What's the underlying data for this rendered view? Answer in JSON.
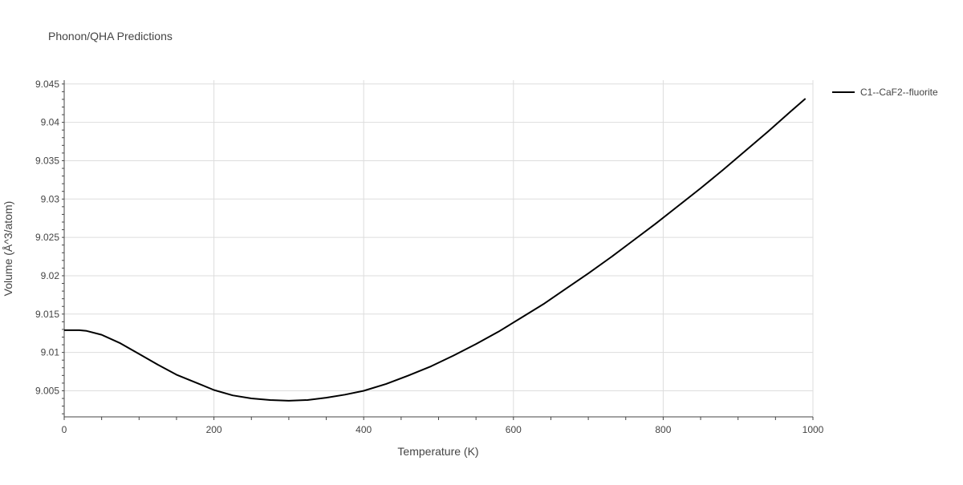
{
  "chart_data": {
    "type": "line",
    "title": "Phonon/QHA Predictions",
    "xlabel": "Temperature (K)",
    "ylabel": "Volume (Å^3/atom)",
    "xlim": [
      0,
      1000
    ],
    "ylim": [
      9.0016,
      9.0455
    ],
    "x_ticks": [
      0,
      200,
      400,
      600,
      800,
      1000
    ],
    "x_tick_labels": [
      "0",
      "200",
      "400",
      "600",
      "800",
      "1000"
    ],
    "y_ticks": [
      9.005,
      9.01,
      9.015,
      9.02,
      9.025,
      9.03,
      9.035,
      9.04,
      9.045
    ],
    "y_tick_labels": [
      "9.005",
      "9.01",
      "9.015",
      "9.02",
      "9.025",
      "9.03",
      "9.035",
      "9.04",
      "9.045"
    ],
    "grid": true,
    "legend_position": "top-right",
    "series": [
      {
        "name": "C1--CaF2--fluorite",
        "color": "#000000",
        "x": [
          0,
          20,
          30,
          50,
          75,
          100,
          125,
          150,
          175,
          200,
          225,
          250,
          275,
          300,
          325,
          350,
          375,
          400,
          430,
          460,
          490,
          520,
          550,
          580,
          610,
          640,
          670,
          700,
          730,
          760,
          790,
          820,
          850,
          880,
          910,
          940,
          970,
          990
        ],
        "y": [
          9.0129,
          9.0129,
          9.0128,
          9.0123,
          9.0112,
          9.0098,
          9.0084,
          9.0071,
          9.0061,
          9.0051,
          9.0044,
          9.004,
          9.0038,
          9.0037,
          9.0038,
          9.0041,
          9.0045,
          9.005,
          9.0059,
          9.007,
          9.0082,
          9.0096,
          9.0111,
          9.0127,
          9.0145,
          9.0163,
          9.0183,
          9.0203,
          9.0224,
          9.0246,
          9.0268,
          9.0291,
          9.0314,
          9.0338,
          9.0363,
          9.0388,
          9.0414,
          9.0431
        ]
      }
    ]
  }
}
